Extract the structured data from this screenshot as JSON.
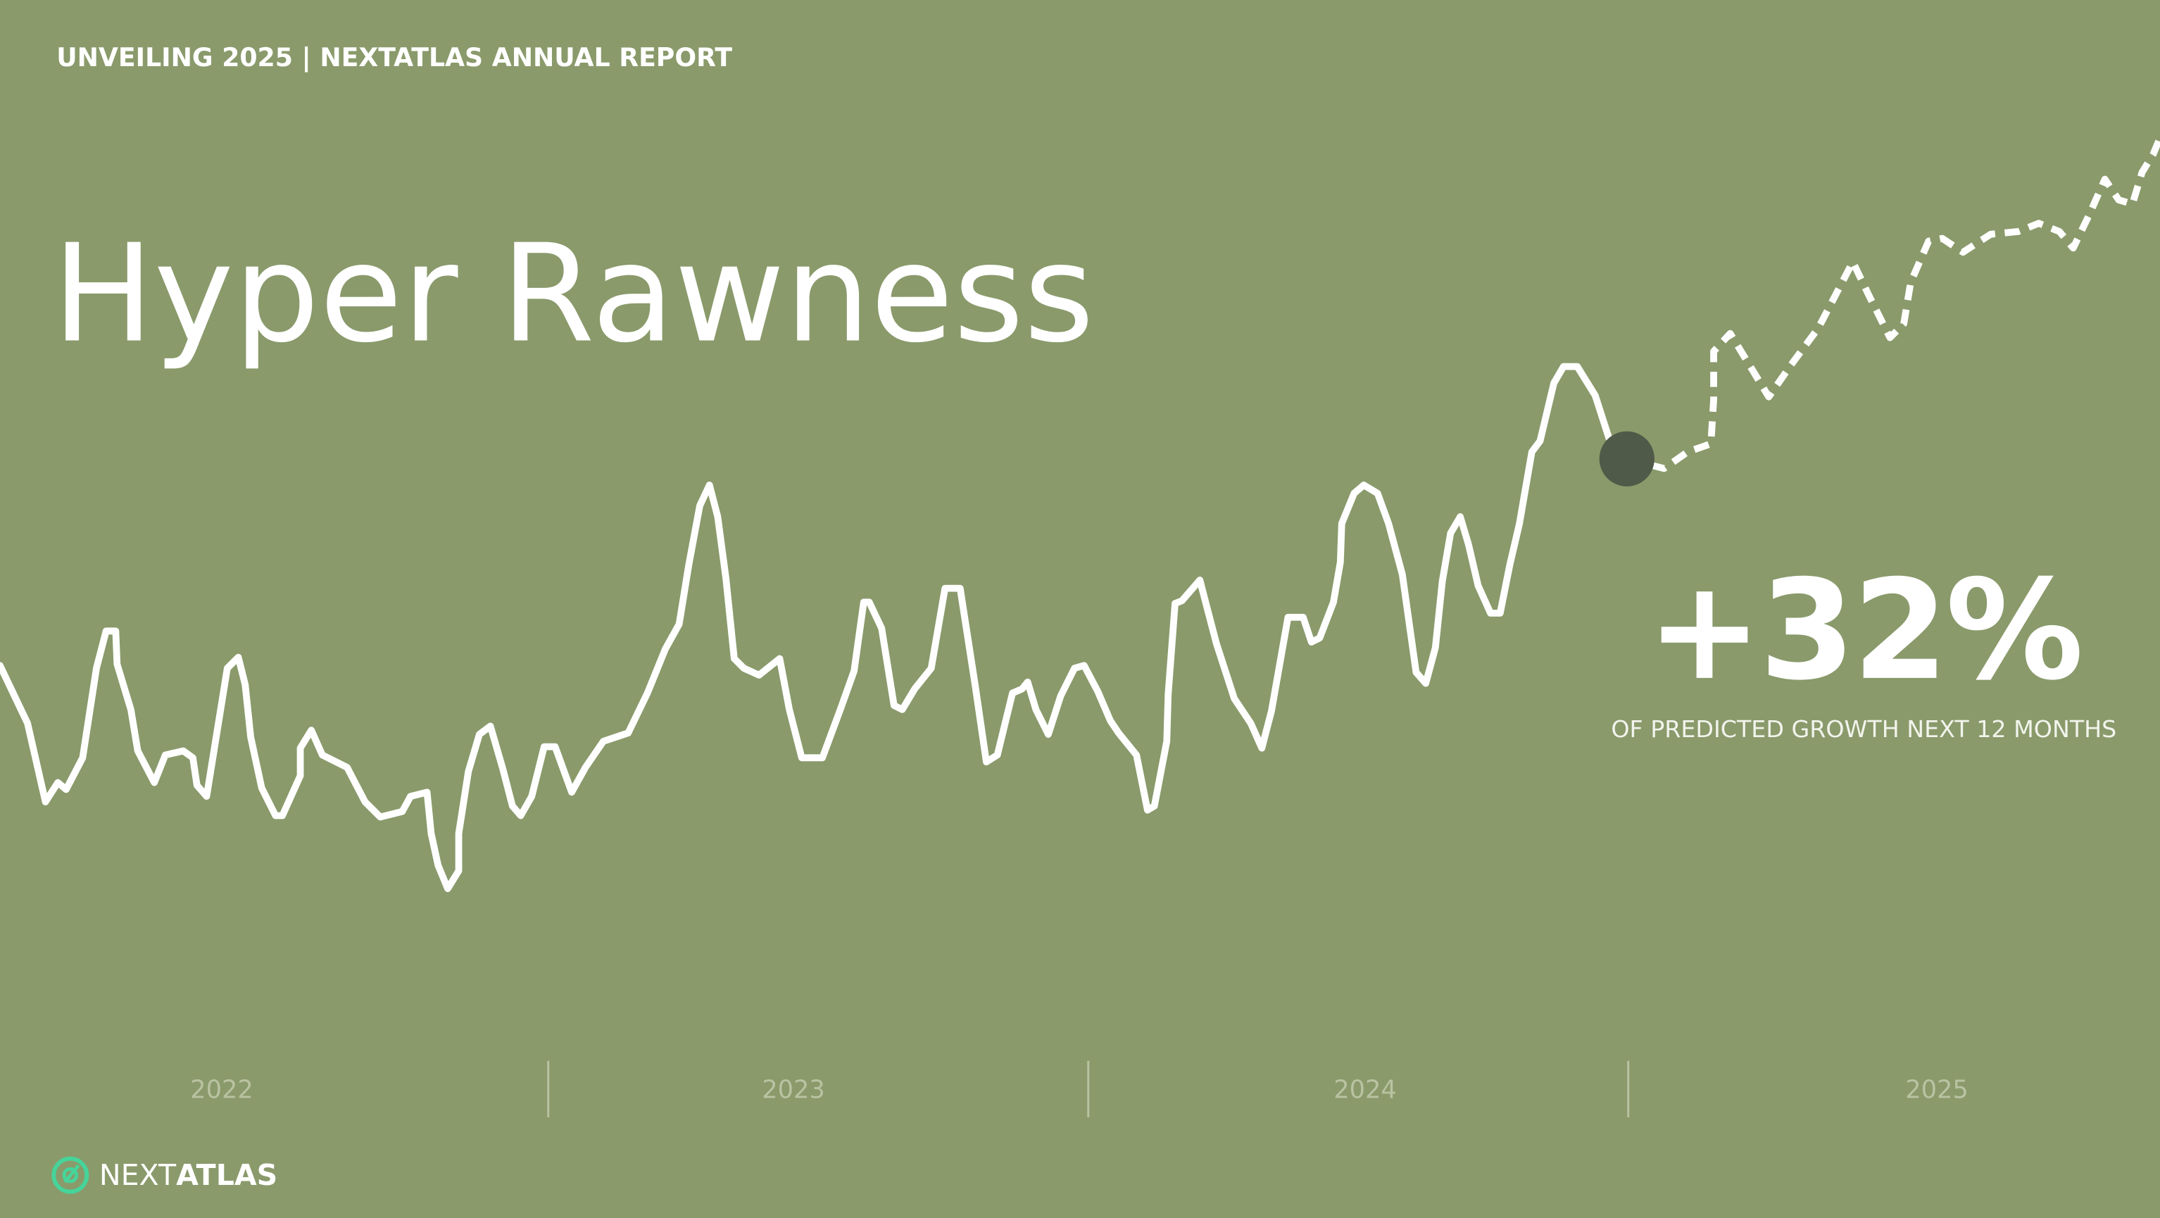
{
  "header": "UNVEILING 2025 | NEXTATLAS ANNUAL REPORT",
  "brand": {
    "light": "NEXT",
    "bold": "ATLAS"
  },
  "chart_data": {
    "type": "line",
    "title": "Hyper Rawness",
    "annotation": "+32%",
    "annotation_caption": "OF PREDICTED GROWTH NEXT 12 MONTHS",
    "categories": [
      "2022",
      "2023",
      "2024",
      "2025"
    ],
    "xlim": [
      0,
      1568
    ],
    "ylim": [
      0,
      884
    ],
    "marker_color": "#4f5a48",
    "series": [
      {
        "color": "#ffffff",
        "style": "solid",
        "x": [
          0,
          20,
          33,
          42,
          48,
          60,
          70,
          77,
          84,
          85,
          95,
          100,
          112,
          120,
          133,
          140,
          143,
          150,
          165,
          173,
          178,
          182,
          190,
          200,
          205,
          218,
          218,
          226,
          234,
          252,
          265,
          276,
          292,
          298,
          310,
          313,
          318,
          325,
          333,
          333,
          340,
          348,
          356,
          365,
          372,
          378,
          386,
          395,
          403,
          415,
          425,
          438,
          456,
          470,
          483,
          493,
          500,
          508,
          515,
          521,
          527,
          533,
          540,
          551,
          566,
          573,
          582,
          597,
          610,
          620,
          627,
          631,
          640,
          649,
          655,
          664,
          676,
          686,
          697,
          708,
          716,
          724,
          735,
          742,
          746,
          752,
          761,
          770,
          780,
          787,
          797,
          806,
          812,
          825,
          833,
          838,
          847,
          848,
          853,
          858,
          871,
          883,
          896,
          908,
          916,
          923,
          935,
          946,
          952,
          958,
          968,
          973,
          974,
          983,
          990,
          1000,
          1008,
          1018,
          1028,
          1035,
          1042,
          1047,
          1053,
          1060,
          1066,
          1073,
          1082,
          1089,
          1096,
          1103,
          1112,
          1118,
          1128,
          1135,
          1145,
          1158,
          1168,
          1181
        ],
        "values": [
          401,
          359,
          302,
          316,
          311,
          334,
          399,
          426,
          426,
          402,
          369,
          339,
          316,
          336,
          339,
          334,
          314,
          306,
          399,
          407,
          387,
          349,
          312,
          292,
          292,
          321,
          341,
          354,
          336,
          327,
          302,
          291,
          295,
          306,
          309,
          279,
          256,
          239,
          252,
          279,
          324,
          351,
          357,
          326,
          299,
          292,
          306,
          342,
          342,
          309,
          327,
          346,
          352,
          381,
          413,
          431,
          474,
          517,
          532,
          509,
          464,
          406,
          399,
          394,
          406,
          369,
          334,
          334,
          369,
          397,
          447,
          447,
          428,
          372,
          369,
          384,
          399,
          457,
          457,
          386,
          331,
          336,
          381,
          384,
          389,
          369,
          351,
          379,
          399,
          401,
          382,
          361,
          352,
          336,
          296,
          299,
          346,
          380,
          446,
          448,
          463,
          417,
          377,
          359,
          341,
          368,
          436,
          436,
          418,
          421,
          447,
          476,
          504,
          526,
          532,
          526,
          504,
          467,
          396,
          388,
          414,
          462,
          497,
          509,
          489,
          459,
          439,
          439,
          474,
          504,
          556,
          564,
          606,
          618,
          618,
          597,
          566,
          551
        ]
      },
      {
        "color": "#ffffff",
        "style": "dashed",
        "x": [
          1181,
          1208,
          1225,
          1242,
          1244,
          1244,
          1256,
          1270,
          1284,
          1300,
          1320,
          1345,
          1357,
          1372,
          1382,
          1387,
          1400,
          1410,
          1425,
          1445,
          1465,
          1480,
          1495,
          1505,
          1517,
          1528,
          1538,
          1548,
          1555,
          1563,
          1568
        ],
        "values": [
          551,
          544,
          556,
          562,
          594,
          629,
          642,
          619,
          596,
          619,
          646,
          694,
          669,
          639,
          649,
          679,
          709,
          711,
          701,
          714,
          716,
          722,
          716,
          704,
          729,
          754,
          739,
          736,
          759,
          772,
          784
        ]
      }
    ]
  }
}
